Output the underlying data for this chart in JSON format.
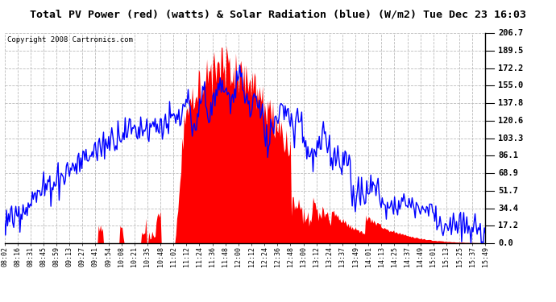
{
  "title": "Total PV Power (red) (watts) & Solar Radiation (blue) (W/m2) Tue Dec 23 16:03",
  "copyright": "Copyright 2008 Cartronics.com",
  "ylabel_right_values": [
    206.7,
    189.5,
    172.2,
    155.0,
    137.8,
    120.6,
    103.3,
    86.1,
    68.9,
    51.7,
    34.4,
    17.2,
    0.0
  ],
  "ylim": [
    0.0,
    206.7
  ],
  "x_tick_labels": [
    "08:02",
    "08:16",
    "08:31",
    "08:45",
    "08:59",
    "09:13",
    "09:27",
    "09:41",
    "09:54",
    "10:08",
    "10:21",
    "10:35",
    "10:48",
    "11:02",
    "11:12",
    "11:24",
    "11:36",
    "11:48",
    "12:00",
    "12:12",
    "12:24",
    "12:36",
    "12:48",
    "13:00",
    "13:12",
    "13:24",
    "13:37",
    "13:49",
    "14:01",
    "14:13",
    "14:25",
    "14:37",
    "14:49",
    "15:01",
    "15:13",
    "15:25",
    "15:37",
    "15:49"
  ],
  "bg_color": "#ffffff",
  "grid_color": "#bbbbbb",
  "red_color": "#ff0000",
  "blue_color": "#0000ff",
  "title_bg": "#cccccc"
}
